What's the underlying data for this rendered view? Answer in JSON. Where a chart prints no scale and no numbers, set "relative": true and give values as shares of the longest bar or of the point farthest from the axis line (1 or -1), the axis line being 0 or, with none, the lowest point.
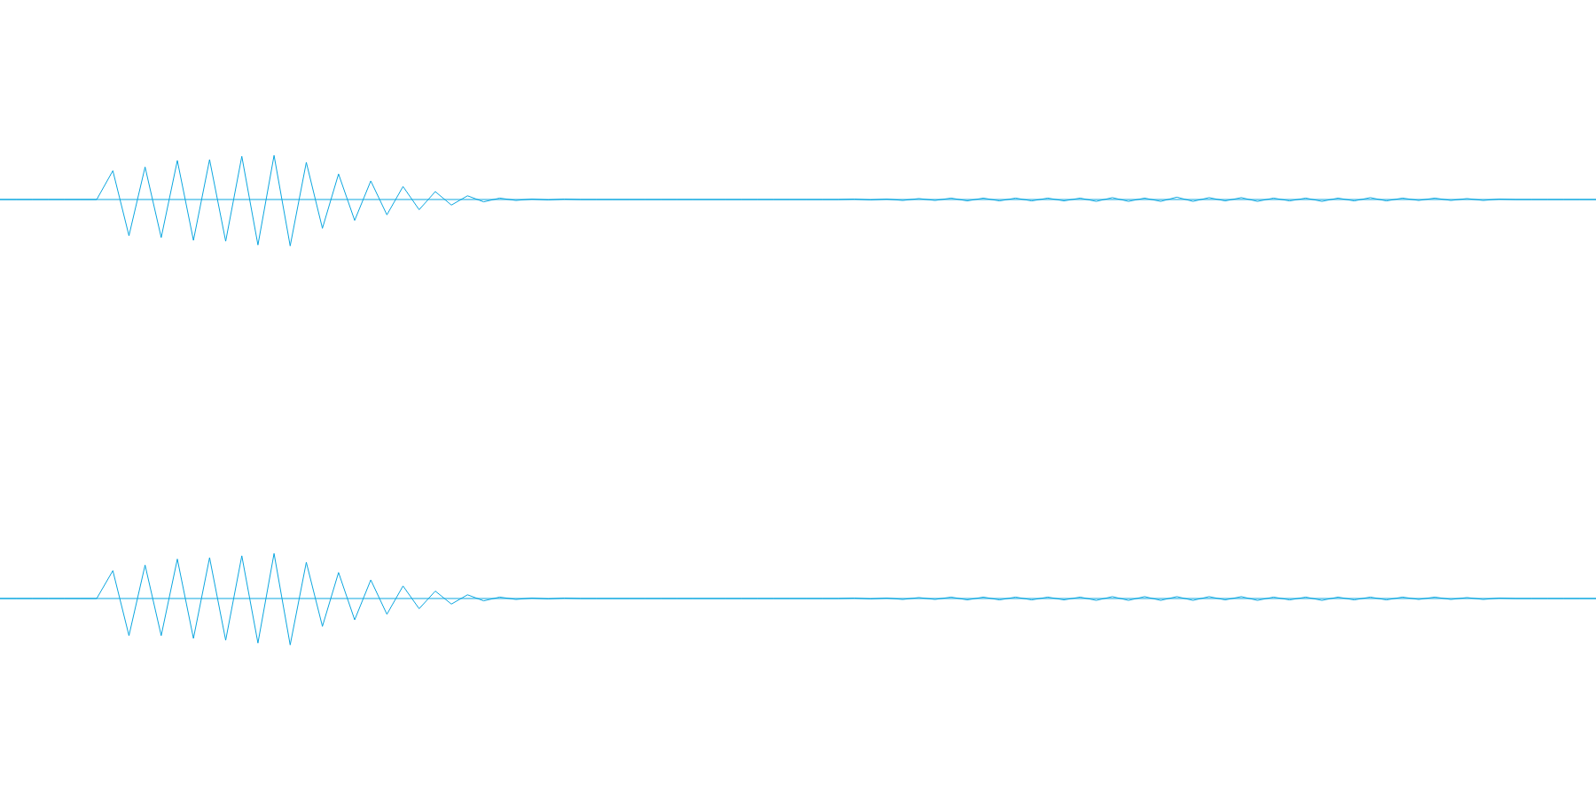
{
  "chart_data": [
    {
      "type": "line",
      "relative": true,
      "color": "#0aa6e0",
      "grid": false,
      "legend": false,
      "marker": "none",
      "tick_labels": false,
      "line_style": "solid",
      "ref_lines": [
        {
          "axis": "y",
          "value": 0,
          "color": "#0aa6e0"
        }
      ],
      "categories": [
        null,
        null,
        null,
        null,
        null,
        null,
        null,
        null,
        null,
        null,
        null,
        null,
        null,
        null,
        null,
        null,
        null,
        null,
        null,
        null,
        null,
        null,
        null,
        null,
        null,
        null,
        null,
        null,
        null,
        null,
        null,
        null,
        null,
        null,
        null,
        null,
        null,
        null,
        null,
        null,
        null,
        null,
        null,
        null,
        null,
        null,
        null,
        null,
        null,
        null,
        null,
        null,
        null,
        null,
        null,
        null,
        null,
        null,
        null,
        null,
        null,
        null,
        null,
        null,
        null,
        null,
        null,
        null,
        null,
        null,
        null,
        null,
        null,
        null,
        null,
        null,
        null,
        null,
        null,
        null,
        null,
        null,
        null,
        null,
        null,
        null,
        null,
        null,
        null,
        null,
        null,
        null,
        null,
        null,
        null,
        null,
        null,
        null,
        null,
        null
      ],
      "values": [
        0,
        0,
        0,
        0,
        0,
        0,
        0,
        0.62,
        -0.78,
        0.7,
        -0.82,
        0.84,
        -0.88,
        0.86,
        -0.9,
        0.93,
        -0.98,
        0.95,
        -1,
        0.8,
        -0.62,
        0.55,
        -0.45,
        0.4,
        -0.33,
        0.28,
        -0.22,
        0.17,
        -0.12,
        0.08,
        -0.05,
        0.03,
        -0.02,
        0.01,
        -0.01,
        0.01,
        0,
        0,
        0,
        0,
        0,
        0,
        0,
        0,
        0,
        0,
        0,
        0,
        0,
        0,
        0,
        0,
        0,
        0.01,
        -0.01,
        0.01,
        -0.02,
        0.02,
        -0.02,
        0.03,
        -0.03,
        0.03,
        -0.03,
        0.03,
        -0.03,
        0.03,
        -0.03,
        0.03,
        -0.04,
        0.04,
        -0.04,
        0.03,
        -0.04,
        0.05,
        -0.04,
        0.04,
        -0.03,
        0.04,
        -0.04,
        0.03,
        -0.03,
        0.03,
        -0.04,
        0.03,
        -0.03,
        0.04,
        -0.03,
        0.03,
        -0.02,
        0.03,
        -0.02,
        0.02,
        -0.02,
        0.01,
        0,
        0,
        0,
        0,
        0,
        0
      ]
    },
    {
      "type": "line",
      "relative": true,
      "color": "#0aa6e0",
      "grid": false,
      "legend": false,
      "marker": "none",
      "tick_labels": false,
      "line_style": "solid",
      "ref_lines": [
        {
          "axis": "y",
          "value": 0,
          "color": "#0aa6e0"
        }
      ],
      "categories": [
        null,
        null,
        null,
        null,
        null,
        null,
        null,
        null,
        null,
        null,
        null,
        null,
        null,
        null,
        null,
        null,
        null,
        null,
        null,
        null,
        null,
        null,
        null,
        null,
        null,
        null,
        null,
        null,
        null,
        null,
        null,
        null,
        null,
        null,
        null,
        null,
        null,
        null,
        null,
        null,
        null,
        null,
        null,
        null,
        null,
        null,
        null,
        null,
        null,
        null,
        null,
        null,
        null,
        null,
        null,
        null,
        null,
        null,
        null,
        null,
        null,
        null,
        null,
        null,
        null,
        null,
        null,
        null,
        null,
        null,
        null,
        null,
        null,
        null,
        null,
        null,
        null,
        null,
        null,
        null,
        null,
        null,
        null,
        null,
        null,
        null,
        null,
        null,
        null,
        null,
        null,
        null,
        null,
        null,
        null,
        null,
        null,
        null,
        null,
        null
      ],
      "values": [
        0,
        0,
        0,
        0,
        0,
        0,
        0,
        0.6,
        -0.8,
        0.72,
        -0.8,
        0.85,
        -0.86,
        0.88,
        -0.9,
        0.92,
        -0.96,
        0.97,
        -1,
        0.78,
        -0.6,
        0.56,
        -0.46,
        0.4,
        -0.34,
        0.27,
        -0.22,
        0.16,
        -0.12,
        0.08,
        -0.05,
        0.03,
        -0.02,
        0.01,
        -0.01,
        0.01,
        0,
        0,
        0,
        0,
        0,
        0,
        0,
        0,
        0,
        0,
        0,
        0,
        0,
        0,
        0,
        0,
        0,
        0.01,
        -0.01,
        0.01,
        -0.02,
        0.02,
        -0.02,
        0.03,
        -0.03,
        0.03,
        -0.03,
        0.03,
        -0.03,
        0.03,
        -0.03,
        0.03,
        -0.04,
        0.04,
        -0.04,
        0.04,
        -0.04,
        0.04,
        -0.04,
        0.04,
        -0.03,
        0.04,
        -0.04,
        0.03,
        -0.03,
        0.03,
        -0.04,
        0.03,
        -0.03,
        0.03,
        -0.03,
        0.03,
        -0.02,
        0.03,
        -0.02,
        0.02,
        -0.02,
        0.01,
        0,
        0,
        0,
        0,
        0,
        0
      ]
    }
  ]
}
